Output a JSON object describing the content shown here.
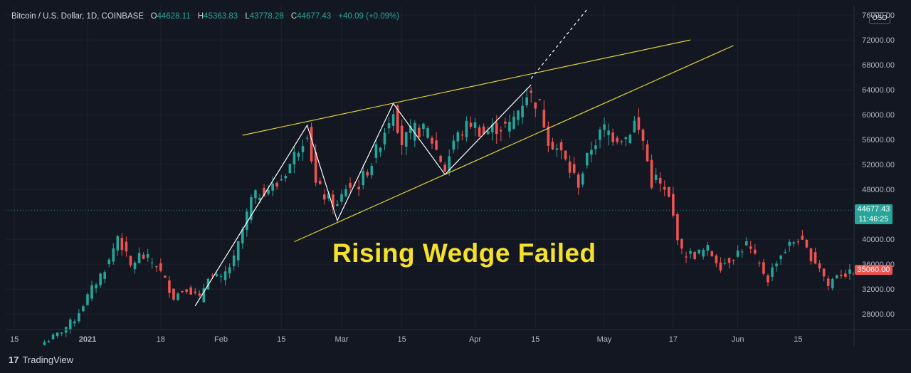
{
  "header": {
    "symbol": "Bitcoin / U.S. Dollar, 1D, COINBASE",
    "o_label": "O",
    "o_value": "44628.11",
    "h_label": "H",
    "h_value": "45363.83",
    "l_label": "L",
    "l_value": "43778.28",
    "c_label": "C",
    "c_value": "44677.43",
    "change": "+40.09 (+0.09%)"
  },
  "currency_button": "USD",
  "annotation": "Rising Wedge Failed",
  "current_price": {
    "label": "44677.43",
    "countdown": "11:46:25"
  },
  "marker_price": {
    "label": "35060.00"
  },
  "branding": {
    "name": "TradingView"
  },
  "colors": {
    "background": "#131722",
    "up": "#26a69a",
    "down": "#ef5350",
    "wedge": "#e0d23a",
    "zigzag": "#ffffff",
    "text": "#d1d4dc"
  },
  "chart_data": {
    "type": "candlestick",
    "title": "Bitcoin / U.S. Dollar, 1D, COINBASE",
    "ylim": [
      25500,
      77500
    ],
    "y_ticks": [
      "76000.00",
      "72000.00",
      "68000.00",
      "64000.00",
      "60000.00",
      "56000.00",
      "52000.00",
      "48000.00",
      "40000.00",
      "36000.00",
      "32000.00",
      "28000.00"
    ],
    "x_range": [
      "2020-12-13",
      "2021-06-28"
    ],
    "x_ticks": [
      {
        "date": "2020-12-15",
        "label": "15"
      },
      {
        "date": "2021-01-01",
        "label": "2021"
      },
      {
        "date": "2021-01-18",
        "label": "18"
      },
      {
        "date": "2021-02-01",
        "label": "Feb"
      },
      {
        "date": "2021-02-15",
        "label": "15"
      },
      {
        "date": "2021-03-01",
        "label": "Mar"
      },
      {
        "date": "2021-03-15",
        "label": "15"
      },
      {
        "date": "2021-04-01",
        "label": "Apr"
      },
      {
        "date": "2021-04-15",
        "label": "15"
      },
      {
        "date": "2021-05-01",
        "label": "May"
      },
      {
        "date": "2021-05-17",
        "label": "17"
      },
      {
        "date": "2021-06-01",
        "label": "Jun"
      },
      {
        "date": "2021-06-15",
        "label": "15"
      }
    ],
    "current_price": 44677.43,
    "marker_price": 35060,
    "price_anchors": [
      [
        "2020-12-22",
        23500
      ],
      [
        "2020-12-25",
        24700
      ],
      [
        "2020-12-29",
        27200
      ],
      [
        "2021-01-02",
        32000
      ],
      [
        "2021-01-06",
        36500
      ],
      [
        "2021-01-08",
        40600
      ],
      [
        "2021-01-11",
        35600
      ],
      [
        "2021-01-13",
        37400
      ],
      [
        "2021-01-15",
        36800
      ],
      [
        "2021-01-17",
        35900
      ],
      [
        "2021-01-21",
        30800
      ],
      [
        "2021-01-24",
        32300
      ],
      [
        "2021-01-27",
        30400
      ],
      [
        "2021-01-29",
        34300
      ],
      [
        "2021-02-01",
        33500
      ],
      [
        "2021-02-04",
        36700
      ],
      [
        "2021-02-08",
        46300
      ],
      [
        "2021-02-11",
        47900
      ],
      [
        "2021-02-14",
        48700
      ],
      [
        "2021-02-17",
        52100
      ],
      [
        "2021-02-21",
        57500
      ],
      [
        "2021-02-23",
        48800
      ],
      [
        "2021-02-25",
        47000
      ],
      [
        "2021-02-28",
        45200
      ],
      [
        "2021-03-02",
        48400
      ],
      [
        "2021-03-05",
        48800
      ],
      [
        "2021-03-08",
        52400
      ],
      [
        "2021-03-10",
        55800
      ],
      [
        "2021-03-13",
        61200
      ],
      [
        "2021-03-15",
        55600
      ],
      [
        "2021-03-18",
        57600
      ],
      [
        "2021-03-21",
        57300
      ],
      [
        "2021-03-25",
        51300
      ],
      [
        "2021-03-27",
        55800
      ],
      [
        "2021-03-31",
        58800
      ],
      [
        "2021-04-03",
        57000
      ],
      [
        "2021-04-06",
        58000
      ],
      [
        "2021-04-09",
        58100
      ],
      [
        "2021-04-13",
        63500
      ],
      [
        "2021-04-14",
        62900
      ],
      [
        "2021-04-16",
        61300
      ],
      [
        "2021-04-18",
        56200
      ],
      [
        "2021-04-21",
        53800
      ],
      [
        "2021-04-23",
        51100
      ],
      [
        "2021-04-25",
        49000
      ],
      [
        "2021-04-28",
        54800
      ],
      [
        "2021-05-01",
        57800
      ],
      [
        "2021-05-03",
        56600
      ],
      [
        "2021-05-06",
        56400
      ],
      [
        "2021-05-08",
        58800
      ],
      [
        "2021-05-10",
        55800
      ],
      [
        "2021-05-12",
        49100
      ],
      [
        "2021-05-13",
        49700
      ],
      [
        "2021-05-16",
        46400
      ],
      [
        "2021-05-19",
        37800
      ],
      [
        "2021-05-22",
        37500
      ],
      [
        "2021-05-25",
        38400
      ],
      [
        "2021-05-28",
        35800
      ],
      [
        "2021-05-31",
        37300
      ],
      [
        "2021-06-03",
        39200
      ],
      [
        "2021-06-06",
        35800
      ],
      [
        "2021-06-08",
        33600
      ],
      [
        "2021-06-10",
        36700
      ],
      [
        "2021-06-13",
        39100
      ],
      [
        "2021-06-15",
        40200
      ],
      [
        "2021-06-17",
        38100
      ],
      [
        "2021-06-20",
        35600
      ],
      [
        "2021-06-22",
        32500
      ],
      [
        "2021-06-24",
        34600
      ],
      [
        "2021-06-27",
        34400
      ],
      [
        "2021-06-28",
        34800
      ]
    ],
    "wedge_upper": [
      [
        "2021-02-06",
        56700
      ],
      [
        "2021-05-21",
        72000
      ]
    ],
    "wedge_lower": [
      [
        "2021-02-18",
        39600
      ],
      [
        "2021-05-31",
        71100
      ]
    ],
    "breakout_projection": [
      [
        "2021-04-14",
        65800
      ],
      [
        "2021-04-27",
        76900
      ]
    ],
    "zigzag": [
      [
        "2021-01-26",
        29300
      ],
      [
        "2021-02-21",
        58300
      ],
      [
        "2021-02-28",
        43000
      ],
      [
        "2021-03-13",
        61800
      ],
      [
        "2021-03-25",
        50400
      ],
      [
        "2021-04-14",
        64800
      ]
    ]
  }
}
